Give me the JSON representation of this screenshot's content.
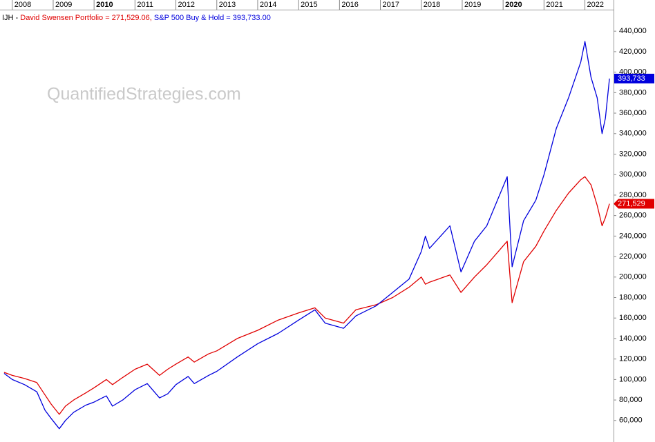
{
  "chart_data": {
    "type": "line",
    "title": "IJH -",
    "legend_separator": "=",
    "watermark": "QuantifiedStrategies.com",
    "x": [
      2007.8,
      2008.0,
      2008.3,
      2008.6,
      2008.8,
      2008.95,
      2009.15,
      2009.3,
      2009.5,
      2009.8,
      2010.0,
      2010.3,
      2010.45,
      2010.7,
      2011.0,
      2011.3,
      2011.6,
      2011.8,
      2012.0,
      2012.3,
      2012.45,
      2012.8,
      2013.0,
      2013.5,
      2014.0,
      2014.5,
      2015.0,
      2015.4,
      2015.65,
      2016.1,
      2016.4,
      2016.9,
      2017.3,
      2017.7,
      2018.0,
      2018.1,
      2018.2,
      2018.7,
      2018.97,
      2019.3,
      2019.6,
      2020.1,
      2020.22,
      2020.5,
      2020.8,
      2021.0,
      2021.3,
      2021.6,
      2021.9,
      2022.0,
      2022.15,
      2022.3,
      2022.42,
      2022.5,
      2022.6
    ],
    "series": [
      {
        "name": "David Swensen Portfolio",
        "color": "#e00000",
        "legend_value_label": "271,529.06,",
        "tag_label": "271,529",
        "values": [
          107000,
          104000,
          101000,
          97000,
          85000,
          76000,
          66000,
          74000,
          80000,
          87000,
          92000,
          100000,
          95000,
          102000,
          110000,
          115000,
          104000,
          110000,
          115000,
          122000,
          117000,
          125000,
          128000,
          140000,
          148000,
          158000,
          165000,
          170000,
          160000,
          155000,
          168000,
          173000,
          180000,
          190000,
          200000,
          193000,
          195000,
          202000,
          185000,
          200000,
          212000,
          235000,
          175000,
          215000,
          230000,
          245000,
          265000,
          282000,
          295000,
          298000,
          290000,
          270000,
          250000,
          258000,
          271529.06
        ]
      },
      {
        "name": "S&P 500 Buy & Hold",
        "color": "#0000dd",
        "legend_value_label": "393,733.00",
        "tag_label": "393,733",
        "values": [
          106000,
          100000,
          95000,
          88000,
          70000,
          62000,
          52000,
          60000,
          68000,
          75000,
          78000,
          84000,
          74000,
          80000,
          90000,
          96000,
          82000,
          86000,
          95000,
          103000,
          96000,
          104000,
          108000,
          122000,
          135000,
          145000,
          158000,
          168000,
          155000,
          150000,
          162000,
          172000,
          185000,
          198000,
          225000,
          240000,
          228000,
          250000,
          205000,
          235000,
          250000,
          298000,
          210000,
          255000,
          275000,
          300000,
          345000,
          375000,
          410000,
          430000,
          395000,
          375000,
          340000,
          355000,
          393733
        ]
      }
    ],
    "xlim": [
      2007.7,
      2022.7
    ],
    "xticks": [
      2008,
      2009,
      2010,
      2011,
      2012,
      2013,
      2014,
      2015,
      2016,
      2017,
      2018,
      2019,
      2020,
      2021,
      2022
    ],
    "bold_xticks": [
      2010,
      2020
    ],
    "ylim": [
      39000,
      461000
    ],
    "yticks": [
      {
        "value": 60000,
        "label": "60,000"
      },
      {
        "value": 80000,
        "label": "80,000"
      },
      {
        "value": 100000,
        "label": "100,000"
      },
      {
        "value": 120000,
        "label": "120,000"
      },
      {
        "value": 140000,
        "label": "140,000"
      },
      {
        "value": 160000,
        "label": "160,000"
      },
      {
        "value": 180000,
        "label": "180,000"
      },
      {
        "value": 200000,
        "label": "200,000"
      },
      {
        "value": 220000,
        "label": "220,000"
      },
      {
        "value": 240000,
        "label": "240,000"
      },
      {
        "value": 260000,
        "label": "260,000"
      },
      {
        "value": 280000,
        "label": "280,000"
      },
      {
        "value": 300000,
        "label": "300,000"
      },
      {
        "value": 320000,
        "label": "320,000"
      },
      {
        "value": 340000,
        "label": "340,000"
      },
      {
        "value": 360000,
        "label": "360,000"
      },
      {
        "value": 380000,
        "label": "380,000"
      },
      {
        "value": 400000,
        "label": "400,000"
      },
      {
        "value": 420000,
        "label": "420,000"
      },
      {
        "value": 440000,
        "label": "440,000"
      }
    ],
    "grid": false
  }
}
